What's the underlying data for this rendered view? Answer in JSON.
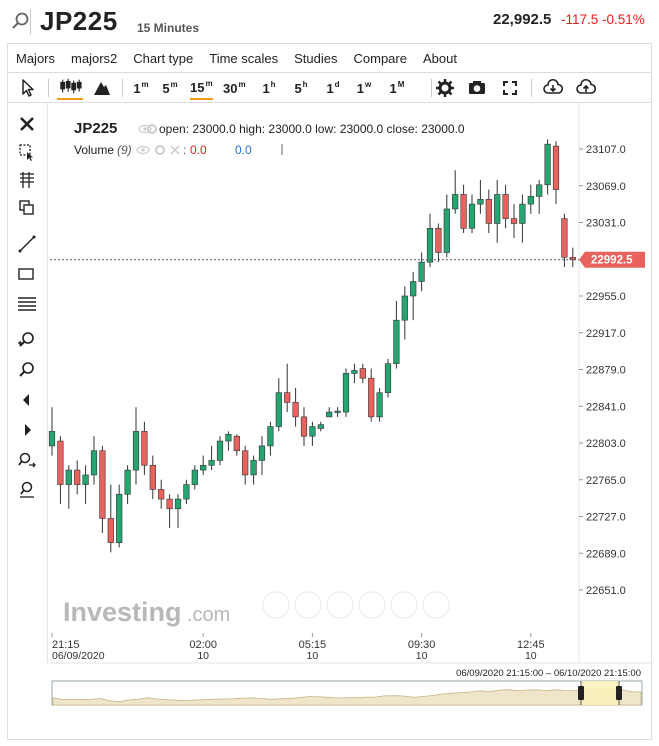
{
  "header": {
    "symbol": "JP225",
    "timeframe": "15 Minutes",
    "price": "22,992.5",
    "change": "-117.5 -0.51%"
  },
  "menu": [
    "Majors",
    "majors2",
    "Chart type",
    "Time scales",
    "Studies",
    "Compare",
    "About"
  ],
  "toolbar": {
    "timeframes": [
      {
        "base": "1",
        "sup": "m"
      },
      {
        "base": "5",
        "sup": "m"
      },
      {
        "base": "15",
        "sup": "m",
        "active": true
      },
      {
        "base": "30",
        "sup": "m"
      },
      {
        "base": "1",
        "sup": "h"
      },
      {
        "base": "5",
        "sup": "h"
      },
      {
        "base": "1",
        "sup": "d"
      },
      {
        "base": "1",
        "sup": "w"
      },
      {
        "base": "1",
        "sup": "M"
      }
    ]
  },
  "legend": {
    "symbol": "JP225",
    "ohlc": "open: 23000.0 high: 23000.0 low: 23000.0 close: 23000.0",
    "volume_label": "Volume",
    "volume_period": "(9)",
    "volume_val1": "0.0",
    "volume_val2": "0.0"
  },
  "watermark": {
    "brand": "Investing",
    "domain": ".com"
  },
  "navigator": {
    "range": "06/09/2020 21:15:00 – 06/10/2020 21:15:00"
  },
  "colors": {
    "up": "#26a570",
    "down": "#e8635e",
    "last_price": "#e8635e",
    "change": "#e0201e"
  },
  "chart_data": {
    "type": "candlestick",
    "symbol": "JP225",
    "interval": "15 Minutes",
    "ylim": [
      22620,
      23140
    ],
    "yticks": [
      "23107.0",
      "23069.0",
      "23031.0",
      "22955.0",
      "22917.0",
      "22879.0",
      "22841.0",
      "22803.0",
      "22765.0",
      "22727.0",
      "22689.0",
      "22651.0"
    ],
    "ytick_values": [
      23107.0,
      23069.0,
      23031.0,
      22955.0,
      22917.0,
      22879.0,
      22841.0,
      22803.0,
      22765.0,
      22727.0,
      22689.0,
      22651.0
    ],
    "xticks": [
      {
        "index": 0,
        "time": "21:15",
        "date": "06/09/2020"
      },
      {
        "index": 18,
        "time": "02:00",
        "date": "10"
      },
      {
        "index": 31,
        "time": "05:15",
        "date": "10"
      },
      {
        "index": 44,
        "time": "09:30",
        "date": "10"
      },
      {
        "index": 57,
        "time": "12:45",
        "date": "10"
      }
    ],
    "last_price": 22992.5,
    "last_price_label": "22992.5",
    "candles": [
      [
        22800,
        22840,
        22790,
        22815
      ],
      [
        22805,
        22810,
        22740,
        22760
      ],
      [
        22760,
        22780,
        22735,
        22775
      ],
      [
        22775,
        22785,
        22750,
        22760
      ],
      [
        22760,
        22780,
        22740,
        22770
      ],
      [
        22770,
        22810,
        22760,
        22795
      ],
      [
        22795,
        22800,
        22710,
        22725
      ],
      [
        22725,
        22760,
        22690,
        22700
      ],
      [
        22700,
        22760,
        22695,
        22750
      ],
      [
        22750,
        22780,
        22740,
        22775
      ],
      [
        22775,
        22840,
        22760,
        22815
      ],
      [
        22815,
        22825,
        22770,
        22780
      ],
      [
        22780,
        22790,
        22745,
        22755
      ],
      [
        22755,
        22765,
        22735,
        22745
      ],
      [
        22745,
        22750,
        22715,
        22735
      ],
      [
        22735,
        22750,
        22715,
        22745
      ],
      [
        22745,
        22765,
        22740,
        22760
      ],
      [
        22760,
        22780,
        22755,
        22775
      ],
      [
        22775,
        22790,
        22770,
        22780
      ],
      [
        22780,
        22800,
        22775,
        22785
      ],
      [
        22785,
        22810,
        22780,
        22805
      ],
      [
        22805,
        22815,
        22795,
        22812
      ],
      [
        22810,
        22812,
        22790,
        22795
      ],
      [
        22795,
        22800,
        22760,
        22770
      ],
      [
        22770,
        22790,
        22760,
        22785
      ],
      [
        22785,
        22810,
        22770,
        22800
      ],
      [
        22800,
        22825,
        22790,
        22820
      ],
      [
        22820,
        22870,
        22815,
        22855
      ],
      [
        22855,
        22885,
        22835,
        22845
      ],
      [
        22845,
        22860,
        22820,
        22830
      ],
      [
        22830,
        22840,
        22800,
        22810
      ],
      [
        22810,
        22825,
        22800,
        22820
      ],
      [
        22818,
        22825,
        22815,
        22822
      ],
      [
        22830,
        22840,
        22830,
        22835
      ],
      [
        22835,
        22840,
        22830,
        22836
      ],
      [
        22835,
        22880,
        22830,
        22875
      ],
      [
        22875,
        22885,
        22865,
        22878
      ],
      [
        22880,
        22885,
        22865,
        22870
      ],
      [
        22870,
        22880,
        22825,
        22830
      ],
      [
        22830,
        22860,
        22825,
        22855
      ],
      [
        22855,
        22890,
        22850,
        22885
      ],
      [
        22885,
        22950,
        22880,
        22930
      ],
      [
        22930,
        22965,
        22910,
        22955
      ],
      [
        22955,
        22980,
        22930,
        22970
      ],
      [
        22970,
        23000,
        22960,
        22990
      ],
      [
        22990,
        23040,
        22985,
        23025
      ],
      [
        23025,
        23030,
        22990,
        23000
      ],
      [
        23000,
        23060,
        22995,
        23045
      ],
      [
        23045,
        23085,
        23040,
        23060
      ],
      [
        23060,
        23070,
        23020,
        23025
      ],
      [
        23025,
        23060,
        23020,
        23050
      ],
      [
        23050,
        23075,
        23040,
        23055
      ],
      [
        23055,
        23065,
        23020,
        23030
      ],
      [
        23030,
        23075,
        23010,
        23060
      ],
      [
        23060,
        23070,
        23025,
        23035
      ],
      [
        23035,
        23050,
        23015,
        23030
      ],
      [
        23030,
        23060,
        23010,
        23050
      ],
      [
        23050,
        23070,
        23040,
        23058
      ],
      [
        23058,
        23075,
        23040,
        23070
      ],
      [
        23070,
        23117,
        23060,
        23112
      ],
      [
        23110,
        23115,
        23050,
        23065
      ],
      [
        23035,
        23040,
        22985,
        22995
      ],
      [
        22995,
        23005,
        22985,
        22992.5
      ]
    ],
    "grid": false
  }
}
